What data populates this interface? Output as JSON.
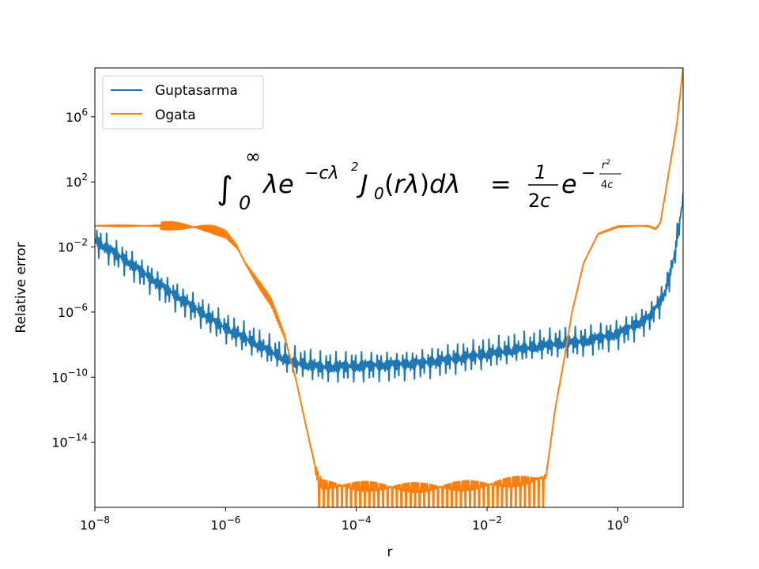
{
  "chart_data": {
    "type": "line",
    "xscale": "log",
    "yscale": "log",
    "xlim": [
      1e-08,
      10
    ],
    "ylim": [
      1e-18,
      1000000000.0
    ],
    "xlabel": "r",
    "ylabel": "Relative error",
    "x_ticks": [
      {
        "value": 1e-08,
        "base": "10",
        "exp": "−8"
      },
      {
        "value": 1e-06,
        "base": "10",
        "exp": "−6"
      },
      {
        "value": 0.0001,
        "base": "10",
        "exp": "−4"
      },
      {
        "value": 0.01,
        "base": "10",
        "exp": "−2"
      },
      {
        "value": 1,
        "base": "10",
        "exp": "0"
      }
    ],
    "y_ticks": [
      {
        "value": 1e-14,
        "base": "10",
        "exp": "−14"
      },
      {
        "value": 1e-10,
        "base": "10",
        "exp": "−10"
      },
      {
        "value": 1e-06,
        "base": "10",
        "exp": "−6"
      },
      {
        "value": 0.01,
        "base": "10",
        "exp": "−2"
      },
      {
        "value": 100,
        "base": "10",
        "exp": "2"
      },
      {
        "value": 1000000.0,
        "base": "10",
        "exp": "6"
      }
    ],
    "legend_position": "top-left",
    "annotation": "∫₀^∞ λ e^(−cλ²) J₀(rλ) dλ = (1/2c) e^(−r²/4c)",
    "series": [
      {
        "name": "Guptasarma",
        "color": "#1f77b4",
        "x": [
          1e-08,
          3e-08,
          1e-07,
          3e-07,
          1e-06,
          3e-06,
          1e-05,
          3e-05,
          0.0001,
          0.001,
          0.01,
          0.1,
          0.3,
          1,
          3,
          5,
          7,
          10
        ],
        "log10_y": [
          -1.6,
          -2.8,
          -4.3,
          -5.6,
          -7.0,
          -8.0,
          -9.1,
          -9.4,
          -9.3,
          -9.1,
          -8.6,
          -8.0,
          -7.8,
          -7.3,
          -6.3,
          -5.0,
          -3.0,
          0.9
        ]
      },
      {
        "name": "Ogata",
        "color": "#ff7f0e",
        "x": [
          1e-08,
          1e-07,
          1.5e-07,
          2e-07,
          2.5e-07,
          4e-07,
          6e-07,
          1e-06,
          1.5e-06,
          2e-06,
          3e-06,
          5e-06,
          8e-06,
          1.2e-05,
          1.7e-05,
          2.5e-05,
          3e-05,
          0.0001,
          0.001,
          0.01,
          0.05,
          0.08,
          0.11,
          0.15,
          0.2,
          0.3,
          0.5,
          1,
          2,
          3,
          3.8,
          4.5,
          6,
          8,
          10
        ],
        "log10_y": [
          -0.7,
          -0.7,
          -0.7,
          -0.72,
          -0.75,
          -0.8,
          -0.9,
          -1.2,
          -2.0,
          -3.0,
          -4.1,
          -5.4,
          -7.5,
          -10.2,
          -13.0,
          -16.0,
          -16.6,
          -16.7,
          -16.8,
          -16.6,
          -16.3,
          -16.1,
          -12.0,
          -9.0,
          -6.0,
          -3.0,
          -1.2,
          -0.75,
          -0.7,
          -0.72,
          -0.9,
          -0.5,
          2.5,
          5.5,
          9.0
        ]
      }
    ]
  }
}
